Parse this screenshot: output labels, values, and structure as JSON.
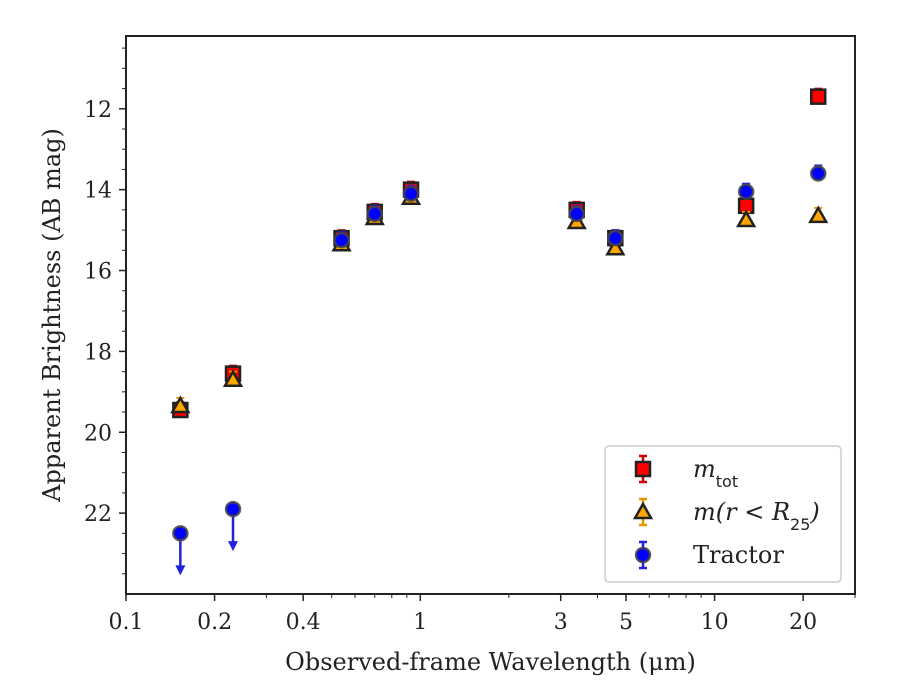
{
  "chart_data": {
    "type": "scatter",
    "title": "",
    "xlabel": "Observed-frame Wavelength (μm)",
    "ylabel": "Apparent Brightness (AB mag)",
    "xscale": "log",
    "xlim": [
      0.1,
      30
    ],
    "ylim": [
      24,
      10.2
    ],
    "y_inverted": true,
    "xticks": [
      0.1,
      0.2,
      0.4,
      1,
      3,
      5,
      10,
      20
    ],
    "xtick_labels": [
      "0.1",
      "0.2",
      "0.4",
      "1",
      "3",
      "5",
      "10",
      "20"
    ],
    "yticks": [
      12,
      14,
      16,
      18,
      20,
      22
    ],
    "ytick_labels": [
      "12",
      "14",
      "16",
      "18",
      "20",
      "22"
    ],
    "legend_position": "bottom-right",
    "series": [
      {
        "name": "m_tot",
        "label_main": "m",
        "label_sub": "tot",
        "marker": "square",
        "color": "#ff0000",
        "edge": "#222222",
        "errcolor": "#cc0000",
        "points": [
          {
            "x": 0.153,
            "y": 19.45
          },
          {
            "x": 0.231,
            "y": 18.55
          },
          {
            "x": 0.54,
            "y": 15.2
          },
          {
            "x": 0.7,
            "y": 14.55
          },
          {
            "x": 0.93,
            "y": 14.0
          },
          {
            "x": 3.4,
            "y": 14.5
          },
          {
            "x": 4.6,
            "y": 15.2
          },
          {
            "x": 12.8,
            "y": 14.4
          },
          {
            "x": 22.5,
            "y": 11.7
          }
        ]
      },
      {
        "name": "m(r < R25)",
        "label_main": "m(r < R",
        "label_sub": "25",
        "label_tail": ")",
        "marker": "triangle",
        "color": "#ffa500",
        "edge": "#222222",
        "errcolor": "#e69500",
        "points": [
          {
            "x": 0.153,
            "y": 19.35
          },
          {
            "x": 0.231,
            "y": 18.7
          },
          {
            "x": 0.54,
            "y": 15.35
          },
          {
            "x": 0.7,
            "y": 14.7
          },
          {
            "x": 0.93,
            "y": 14.2
          },
          {
            "x": 3.4,
            "y": 14.8
          },
          {
            "x": 4.6,
            "y": 15.45
          },
          {
            "x": 12.8,
            "y": 14.75
          },
          {
            "x": 22.5,
            "y": 14.65
          }
        ]
      },
      {
        "name": "Tractor",
        "label_main": "Tractor",
        "marker": "circle",
        "color": "#0000ff",
        "edge": "#444444",
        "errcolor": "#2222dd",
        "points": [
          {
            "x": 0.153,
            "y": 22.5,
            "upper_limit": true
          },
          {
            "x": 0.231,
            "y": 21.9,
            "upper_limit": true
          },
          {
            "x": 0.54,
            "y": 15.25
          },
          {
            "x": 0.7,
            "y": 14.6
          },
          {
            "x": 0.93,
            "y": 14.1
          },
          {
            "x": 3.4,
            "y": 14.6
          },
          {
            "x": 4.6,
            "y": 15.2
          },
          {
            "x": 12.8,
            "y": 14.05
          },
          {
            "x": 22.5,
            "y": 13.6
          }
        ]
      }
    ]
  }
}
